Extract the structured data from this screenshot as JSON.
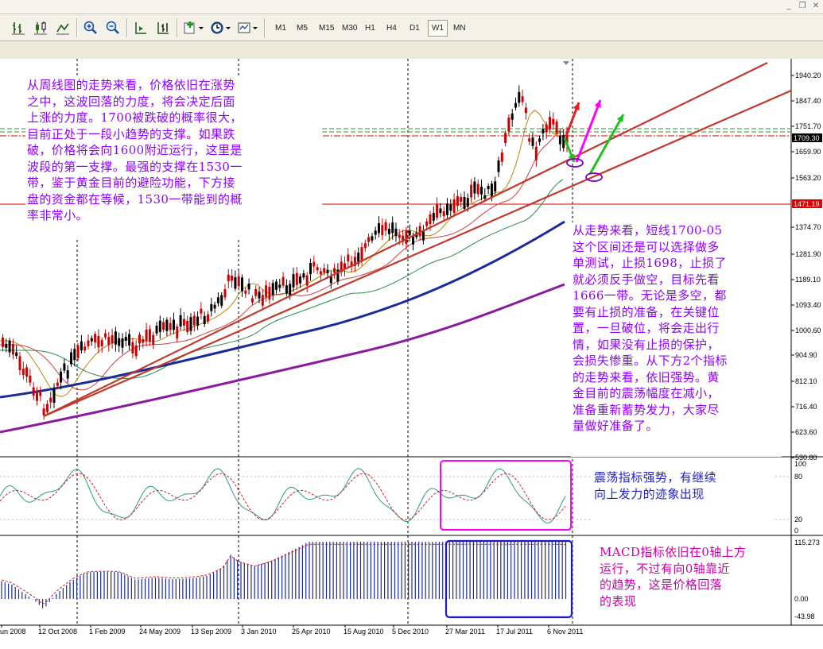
{
  "toolbar": {
    "timeframes": [
      "M1",
      "M5",
      "M15",
      "M30",
      "H1",
      "H4",
      "D1",
      "W1",
      "MN"
    ],
    "active_timeframe": "W1",
    "buttons": [
      {
        "name": "bar-chart-button",
        "icon": "bar-chart-icon"
      },
      {
        "name": "candlestick-button",
        "icon": "candlestick-icon"
      },
      {
        "name": "line-chart-button",
        "icon": "line-chart-icon"
      },
      {
        "name": "zoom-in-button",
        "icon": "zoom-in-icon"
      },
      {
        "name": "zoom-out-button",
        "icon": "zoom-out-icon"
      },
      {
        "name": "auto-scroll-button",
        "icon": "auto-scroll-icon"
      },
      {
        "name": "chart-shift-button",
        "icon": "chart-shift-icon"
      },
      {
        "name": "indicators-button",
        "icon": "indicators-icon"
      },
      {
        "name": "periods-button",
        "icon": "clock-icon"
      },
      {
        "name": "templates-button",
        "icon": "templates-icon"
      }
    ]
  },
  "price_axis": {
    "labels": [
      "1940.20",
      "1847.40",
      "1751.70",
      "1659.90",
      "1563.20",
      "1374.70",
      "1281.90",
      "1189.10",
      "1093.40",
      "1000.60",
      "904.90",
      "812.10",
      "716.40",
      "623.60",
      "530.80"
    ],
    "current_price": "1709.30",
    "level_price": "1471.19"
  },
  "stoch_axis": {
    "labels": [
      "100",
      "80",
      "20",
      "0"
    ]
  },
  "macd_axis": {
    "labels": [
      "115.273",
      "0.00",
      "-43.98"
    ]
  },
  "time_axis": {
    "labels": [
      "un 2008",
      "12 Oct 2008",
      "1 Feb 2009",
      "24 May 2009",
      "13 Sep 2009",
      "3 Jan 2010",
      "25 Apr 2010",
      "15 Aug 2010",
      "5 Dec 2010",
      "27 Mar 2011",
      "17 Jul 2011",
      "6 Nov 2011"
    ]
  },
  "notes": {
    "weekly": "从周线图的走势来看，价格依旧在涨势\n之中，这波回落的力度，将会决定后面\n上涨的力度。1700被跌破的概率很大，\n目前正处于一段小趋势的支撑。如果跌\n破，价格将会向1600附近运行，这里是\n波段的第一支撑。最强的支撑在1530一\n带，鉴于黄金目前的避险功能，下方接\n盘的资金都在等候，1530一带能到的概\n率非常小。",
    "short_term": "从走势来看，短线1700-05\n这个区间还是可以选择做多\n单测试，止损1698，止损了\n就必须反手做空，目标先看\n1666一带。无论是多空，都\n要有止损的准备，在关键位\n置，一旦破位，将会走出行\n情，如果没有止损的保护，\n会损失惨重。从下方2个指标\n的走势来看，依旧强势。黄\n金目前的震荡幅度在减小，\n准备重新蓄势发力，大家尽\n量做好准备了。",
    "stochastic": "震荡指标强势，有继续\n向上发力的迹象出现",
    "macd": "MACD指标依旧在0轴上方\n运行，不过有向0轴靠近\n的趋势，这是价格回落\n的表现"
  },
  "colors": {
    "bull_candle": "#000000",
    "bear_candle": "#cc0000",
    "trendline": "#c0392b",
    "ma_long": "#1a2a9a",
    "ma_longest": "#8b1a9f",
    "note_text": "#8f00ff",
    "stoch_highlight": "#ff00ff",
    "macd_highlight": "#1a1acc"
  }
}
